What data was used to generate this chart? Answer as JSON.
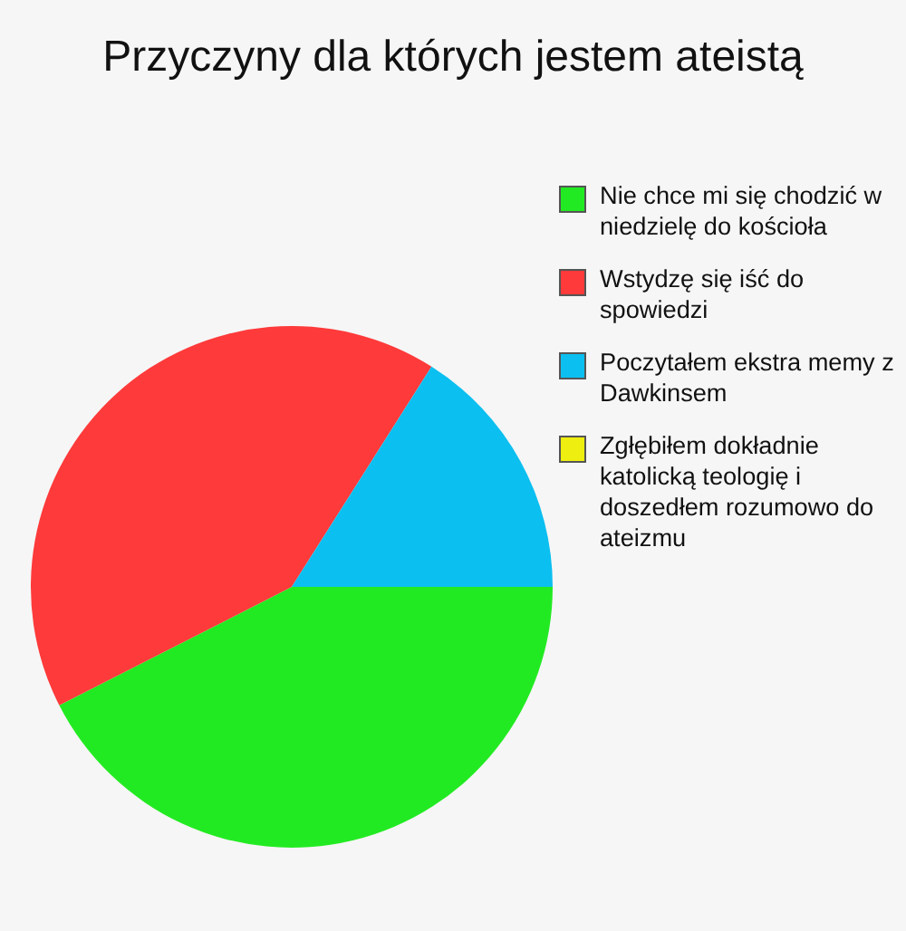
{
  "chart_data": {
    "type": "pie",
    "title": "Przyczyny dla których jestem ateistą",
    "categories": [
      "Nie chce mi się chodzić w niedzielę do kościoła",
      "Wstydzę się iść do spowiedzi",
      "Poczytałem ekstra memy z Dawkinsem",
      "Zgłębiłem dokładnie katolicką teologię i doszedłem rozumowo do ateizmu"
    ],
    "values": [
      42.5,
      41.5,
      16,
      0
    ],
    "colors": [
      "#22ea22",
      "#fe3a3a",
      "#0bbff0",
      "#eeee11"
    ],
    "legend": "top right"
  }
}
